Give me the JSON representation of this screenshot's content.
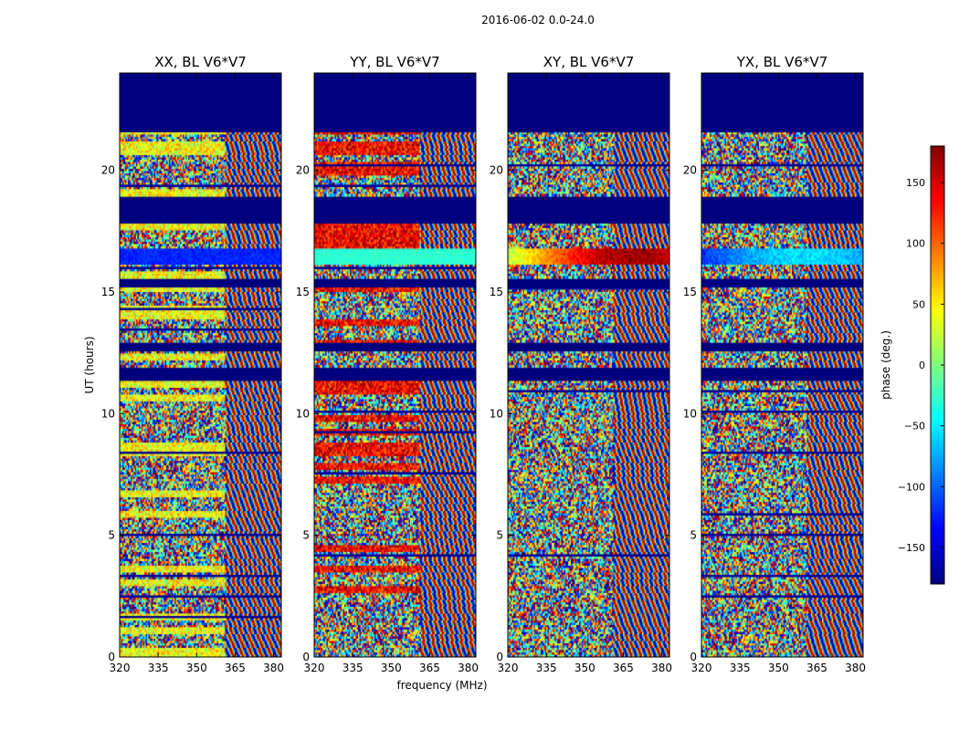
{
  "figure_title": "2016-06-02 0.0-24.0",
  "chart_data": {
    "type": "heatmap",
    "title": "2016-06-02 0.0-24.0",
    "xlabel": "frequency (MHz)",
    "ylabel": "UT (hours)",
    "xlim": [
      320,
      383
    ],
    "ylim": [
      0,
      24
    ],
    "x_ticks": [
      320,
      335,
      350,
      365,
      380
    ],
    "y_ticks": [
      0,
      5,
      10,
      15,
      20
    ],
    "colorbar": {
      "label": "phase (deg.)",
      "range": [
        -180,
        180
      ],
      "ticks": [
        150,
        100,
        50,
        0,
        -50,
        -100,
        -150
      ],
      "tick_labels": [
        "150",
        "100",
        "50",
        "0",
        "−50",
        "−100",
        "−150"
      ],
      "colormap": "jet"
    },
    "panels": [
      {
        "title": "XX, BL V6*V7",
        "pol": "XX"
      },
      {
        "title": "YY, BL V6*V7",
        "pol": "YY"
      },
      {
        "title": "XY, BL V6*V7",
        "pol": "XY"
      },
      {
        "title": "YX, BL V6*V7",
        "pol": "YX"
      }
    ],
    "no_data_intervals_hours": [
      [
        21.6,
        24.0
      ],
      [
        17.8,
        18.9
      ],
      [
        15.2,
        15.6
      ],
      [
        11.3,
        11.9
      ],
      [
        12.6,
        12.9
      ]
    ],
    "strong_signal_band_hours": [
      16.1,
      16.8
    ],
    "fringe_onset_frequency_mhz": 361
  }
}
